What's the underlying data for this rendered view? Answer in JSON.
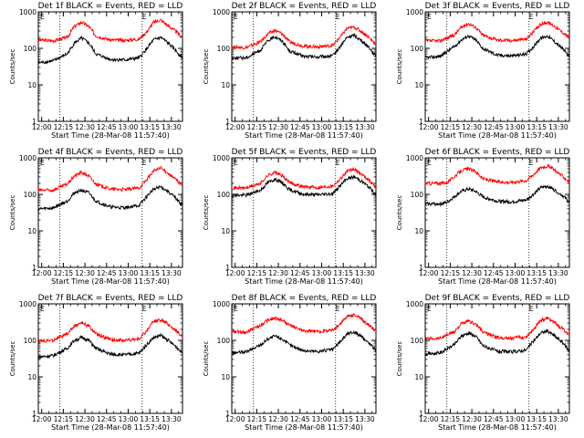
{
  "chart_data": [
    {
      "type": "line",
      "title": "Det 1f BLACK = Events, RED = LLD",
      "xlabel": "Start Time (28-Mar-08 11:57:40)",
      "ylabel": "Counts/sec",
      "x_ticks": [
        "12:00",
        "12:15",
        "12:30",
        "12:45",
        "13:00",
        "13:15",
        "13:30"
      ],
      "y_ticks": [
        "1",
        "10",
        "100",
        "1000"
      ],
      "scale": "log",
      "ylim": [
        1,
        1000
      ],
      "xlim_minutes": [
        0,
        100
      ],
      "annotations": [
        "E",
        "E"
      ],
      "series": [
        {
          "color": "#ff0000",
          "x": [
            0,
            10,
            20,
            25,
            30,
            35,
            40,
            50,
            60,
            70,
            75,
            80,
            85,
            90,
            95,
            100
          ],
          "values": [
            170,
            160,
            200,
            400,
            520,
            400,
            220,
            170,
            165,
            180,
            280,
            520,
            600,
            420,
            300,
            200
          ]
        },
        {
          "color": "#000000",
          "x": [
            0,
            10,
            20,
            25,
            30,
            35,
            40,
            50,
            60,
            70,
            75,
            80,
            85,
            90,
            95,
            100
          ],
          "values": [
            40,
            45,
            70,
            140,
            190,
            140,
            70,
            50,
            48,
            55,
            95,
            170,
            200,
            140,
            90,
            55
          ]
        }
      ],
      "event_lines_minutes": [
        15,
        72
      ]
    },
    {
      "type": "line",
      "title": "Det 2f BLACK = Events, RED = LLD",
      "xlabel": "Start Time (28-Mar-08 11:57:40)",
      "ylabel": "Counts/sec",
      "x_ticks": [
        "12:00",
        "12:15",
        "12:30",
        "12:45",
        "13:00",
        "13:15",
        "13:30"
      ],
      "y_ticks": [
        "1",
        "10",
        "100",
        "1000"
      ],
      "scale": "log",
      "ylim": [
        1,
        1000
      ],
      "xlim_minutes": [
        0,
        100
      ],
      "annotations": [
        "E",
        "E"
      ],
      "series": [
        {
          "color": "#ff0000",
          "x": [
            0,
            10,
            20,
            25,
            30,
            35,
            40,
            50,
            60,
            70,
            75,
            80,
            85,
            90,
            95,
            100
          ],
          "values": [
            110,
            105,
            150,
            250,
            310,
            250,
            150,
            115,
            110,
            120,
            200,
            350,
            380,
            290,
            200,
            130
          ]
        },
        {
          "color": "#000000",
          "x": [
            0,
            10,
            20,
            25,
            30,
            35,
            40,
            50,
            60,
            70,
            75,
            80,
            85,
            90,
            95,
            100
          ],
          "values": [
            55,
            55,
            90,
            160,
            210,
            160,
            85,
            60,
            58,
            62,
            110,
            200,
            230,
            160,
            110,
            60
          ]
        }
      ],
      "event_lines_minutes": [
        15,
        72
      ]
    },
    {
      "type": "line",
      "title": "Det 3f BLACK = Events, RED = LLD",
      "xlabel": "Start Time (28-Mar-08 11:57:40)",
      "ylabel": "Counts/sec",
      "x_ticks": [
        "12:00",
        "12:15",
        "12:30",
        "12:45",
        "13:00",
        "13:15",
        "13:30"
      ],
      "y_ticks": [
        "1",
        "10",
        "100",
        "1000"
      ],
      "scale": "log",
      "ylim": [
        1,
        1000
      ],
      "xlim_minutes": [
        0,
        100
      ],
      "annotations": [
        "E",
        "E"
      ],
      "series": [
        {
          "color": "#ff0000",
          "x": [
            0,
            10,
            20,
            25,
            30,
            35,
            40,
            50,
            60,
            70,
            75,
            80,
            85,
            90,
            95,
            100
          ],
          "values": [
            160,
            160,
            230,
            380,
            480,
            380,
            230,
            170,
            165,
            180,
            280,
            460,
            520,
            400,
            280,
            200
          ]
        },
        {
          "color": "#000000",
          "x": [
            0,
            10,
            20,
            25,
            30,
            35,
            40,
            50,
            60,
            70,
            75,
            80,
            85,
            90,
            95,
            100
          ],
          "values": [
            55,
            60,
            110,
            170,
            220,
            170,
            100,
            65,
            62,
            70,
            110,
            190,
            220,
            150,
            100,
            60
          ]
        }
      ],
      "event_lines_minutes": [
        15,
        72
      ]
    },
    {
      "type": "line",
      "title": "Det 4f BLACK = Events, RED = LLD",
      "xlabel": "Start Time (28-Mar-08 11:57:40)",
      "ylabel": "Counts/sec",
      "x_ticks": [
        "12:00",
        "12:15",
        "12:30",
        "12:45",
        "13:00",
        "13:15",
        "13:30"
      ],
      "y_ticks": [
        "1",
        "10",
        "100",
        "1000"
      ],
      "scale": "log",
      "ylim": [
        1,
        1000
      ],
      "xlim_minutes": [
        0,
        100
      ],
      "annotations": [
        "E",
        "E"
      ],
      "series": [
        {
          "color": "#ff0000",
          "x": [
            0,
            10,
            20,
            25,
            30,
            35,
            40,
            50,
            60,
            70,
            75,
            80,
            85,
            90,
            95,
            100
          ],
          "values": [
            130,
            130,
            190,
            320,
            400,
            320,
            190,
            140,
            135,
            150,
            250,
            440,
            520,
            380,
            260,
            180
          ]
        },
        {
          "color": "#000000",
          "x": [
            0,
            10,
            20,
            25,
            30,
            35,
            40,
            50,
            60,
            70,
            75,
            80,
            85,
            90,
            95,
            100
          ],
          "values": [
            40,
            42,
            65,
            110,
            130,
            110,
            65,
            45,
            43,
            50,
            85,
            140,
            160,
            120,
            80,
            50
          ]
        }
      ],
      "event_lines_minutes": [
        15,
        72
      ]
    },
    {
      "type": "line",
      "title": "Det 5f BLACK = Events, RED = LLD",
      "xlabel": "Start Time (28-Mar-08 11:57:40)",
      "ylabel": "Counts/sec",
      "x_ticks": [
        "12:00",
        "12:15",
        "12:30",
        "12:45",
        "13:00",
        "13:15",
        "13:30"
      ],
      "y_ticks": [
        "1",
        "10",
        "100",
        "1000"
      ],
      "scale": "log",
      "ylim": [
        1,
        1000
      ],
      "xlim_minutes": [
        0,
        100
      ],
      "annotations": [
        "E",
        "E"
      ],
      "series": [
        {
          "color": "#ff0000",
          "x": [
            0,
            10,
            20,
            25,
            30,
            35,
            40,
            50,
            60,
            70,
            75,
            80,
            85,
            90,
            95,
            100
          ],
          "values": [
            150,
            150,
            200,
            330,
            400,
            320,
            210,
            160,
            155,
            170,
            260,
            430,
            480,
            360,
            250,
            160
          ]
        },
        {
          "color": "#000000",
          "x": [
            0,
            10,
            20,
            25,
            30,
            35,
            40,
            50,
            60,
            70,
            75,
            80,
            85,
            90,
            95,
            100
          ],
          "values": [
            95,
            95,
            130,
            210,
            260,
            210,
            135,
            100,
            98,
            105,
            170,
            270,
            300,
            230,
            160,
            100
          ]
        }
      ],
      "event_lines_minutes": [
        15,
        72
      ]
    },
    {
      "type": "line",
      "title": "Det 6f BLACK = Events, RED = LLD",
      "xlabel": "Start Time (28-Mar-08 11:57:40)",
      "ylabel": "Counts/sec",
      "x_ticks": [
        "12:00",
        "12:15",
        "12:30",
        "12:45",
        "13:00",
        "13:15",
        "13:30"
      ],
      "y_ticks": [
        "1",
        "10",
        "100",
        "1000"
      ],
      "scale": "log",
      "ylim": [
        1,
        1000
      ],
      "xlim_minutes": [
        0,
        100
      ],
      "annotations": [
        "E",
        "E"
      ],
      "series": [
        {
          "color": "#ff0000",
          "x": [
            0,
            10,
            15,
            20,
            25,
            30,
            35,
            40,
            50,
            60,
            70,
            75,
            80,
            85,
            90,
            95,
            100
          ],
          "values": [
            200,
            200,
            210,
            300,
            450,
            500,
            420,
            270,
            220,
            215,
            240,
            350,
            540,
            600,
            460,
            320,
            220
          ]
        },
        {
          "color": "#000000",
          "x": [
            0,
            10,
            15,
            20,
            25,
            30,
            35,
            40,
            50,
            60,
            70,
            75,
            80,
            85,
            90,
            95,
            100
          ],
          "values": [
            55,
            55,
            60,
            85,
            120,
            140,
            120,
            85,
            65,
            62,
            70,
            100,
            150,
            170,
            130,
            95,
            60
          ]
        }
      ],
      "event_lines_minutes": [
        15,
        72
      ]
    },
    {
      "type": "line",
      "title": "Det 7f BLACK = Events, RED = LLD",
      "xlabel": "Start Time (28-Mar-08 11:57:40)",
      "ylabel": "Counts/sec",
      "x_ticks": [
        "12:00",
        "12:15",
        "12:30",
        "12:45",
        "13:00",
        "13:15",
        "13:30"
      ],
      "y_ticks": [
        "1",
        "10",
        "100",
        "1000"
      ],
      "scale": "log",
      "ylim": [
        1,
        1000
      ],
      "xlim_minutes": [
        0,
        100
      ],
      "annotations": [
        "E",
        "E"
      ],
      "series": [
        {
          "color": "#ff0000",
          "x": [
            0,
            10,
            20,
            25,
            30,
            35,
            40,
            50,
            60,
            70,
            75,
            80,
            85,
            90,
            95,
            100
          ],
          "values": [
            95,
            100,
            150,
            250,
            300,
            250,
            150,
            105,
            100,
            110,
            180,
            330,
            370,
            280,
            190,
            130
          ]
        },
        {
          "color": "#000000",
          "x": [
            0,
            10,
            20,
            25,
            30,
            35,
            40,
            50,
            60,
            70,
            75,
            80,
            85,
            90,
            95,
            100
          ],
          "values": [
            35,
            38,
            60,
            100,
            120,
            100,
            60,
            42,
            40,
            45,
            75,
            120,
            135,
            100,
            70,
            45
          ]
        }
      ],
      "event_lines_minutes": [
        15,
        72
      ]
    },
    {
      "type": "line",
      "title": "Det 8f BLACK = Events, RED = LLD",
      "xlabel": "Start Time (28-Mar-08 11:57:40)",
      "ylabel": "Counts/sec",
      "x_ticks": [
        "12:00",
        "12:15",
        "12:30",
        "12:45",
        "13:00",
        "13:15",
        "13:30"
      ],
      "y_ticks": [
        "1",
        "10",
        "100",
        "1000"
      ],
      "scale": "log",
      "ylim": [
        1,
        1000
      ],
      "xlim_minutes": [
        0,
        100
      ],
      "annotations": [
        "E",
        "E"
      ],
      "series": [
        {
          "color": "#ff0000",
          "x": [
            0,
            10,
            20,
            25,
            30,
            35,
            40,
            50,
            60,
            70,
            75,
            80,
            85,
            90,
            95,
            100
          ],
          "values": [
            170,
            170,
            260,
            360,
            400,
            360,
            260,
            180,
            175,
            190,
            280,
            450,
            500,
            380,
            260,
            180
          ]
        },
        {
          "color": "#000000",
          "x": [
            0,
            10,
            20,
            25,
            30,
            35,
            40,
            50,
            60,
            70,
            75,
            80,
            85,
            90,
            95,
            100
          ],
          "values": [
            45,
            48,
            75,
            110,
            130,
            110,
            75,
            52,
            50,
            56,
            90,
            150,
            170,
            125,
            85,
            55
          ]
        }
      ],
      "event_lines_minutes": [
        15,
        72
      ]
    },
    {
      "type": "line",
      "title": "Det 9f BLACK = Events, RED = LLD",
      "xlabel": "Start Time (28-Mar-08 11:57:40)",
      "ylabel": "Counts/sec",
      "x_ticks": [
        "12:00",
        "12:15",
        "12:30",
        "12:45",
        "13:00",
        "13:15",
        "13:30"
      ],
      "y_ticks": [
        "1",
        "10",
        "100",
        "1000"
      ],
      "scale": "log",
      "ylim": [
        1,
        1000
      ],
      "xlim_minutes": [
        0,
        100
      ],
      "annotations": [
        "E",
        "E"
      ],
      "series": [
        {
          "color": "#ff0000",
          "x": [
            0,
            10,
            20,
            25,
            30,
            35,
            40,
            50,
            60,
            70,
            75,
            80,
            85,
            90,
            95,
            100
          ],
          "values": [
            110,
            115,
            170,
            280,
            330,
            280,
            170,
            120,
            115,
            125,
            200,
            360,
            400,
            300,
            210,
            140
          ]
        },
        {
          "color": "#000000",
          "x": [
            0,
            10,
            20,
            25,
            30,
            35,
            40,
            50,
            60,
            70,
            75,
            80,
            85,
            90,
            95,
            100
          ],
          "values": [
            42,
            45,
            75,
            130,
            160,
            130,
            72,
            50,
            48,
            54,
            95,
            160,
            180,
            130,
            90,
            50
          ]
        }
      ],
      "event_lines_minutes": [
        15,
        72
      ]
    }
  ]
}
